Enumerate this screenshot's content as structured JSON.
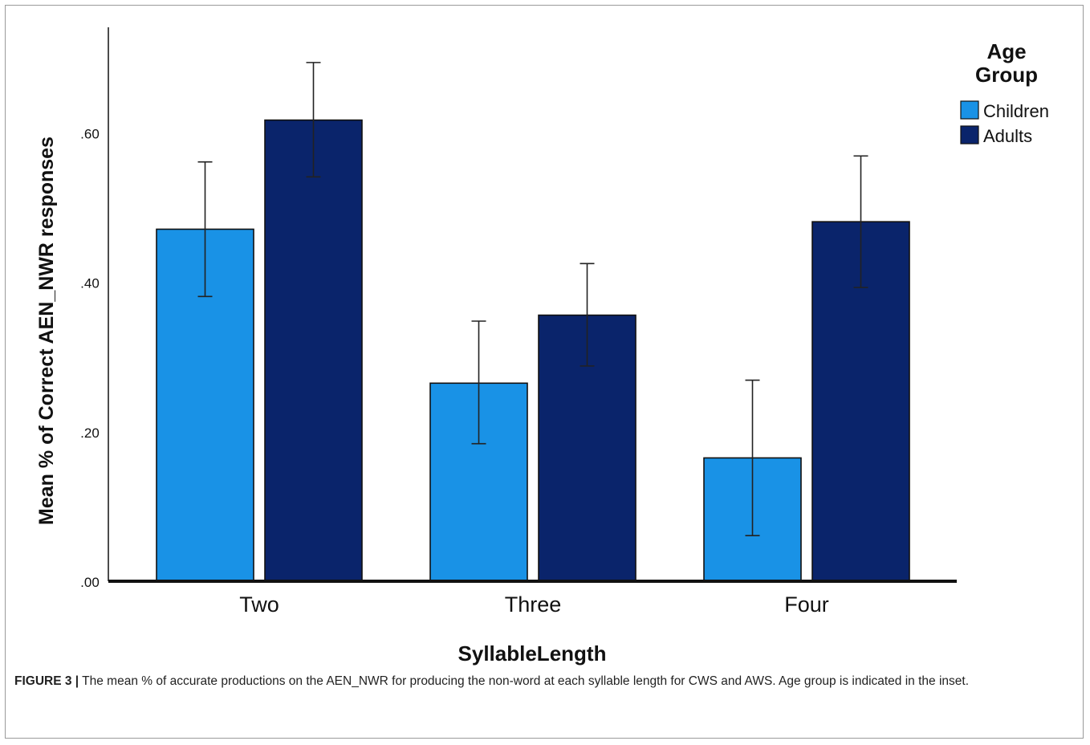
{
  "chart_data": {
    "type": "bar",
    "title": "",
    "xlabel": "SyllableLength",
    "ylabel": "Mean % of Correct AEN_NWR responses",
    "categories": [
      "Two",
      "Three",
      "Four"
    ],
    "ylim": [
      0,
      0.74
    ],
    "yticks": [
      0,
      0.2,
      0.4,
      0.6
    ],
    "ytick_labels": [
      ".00",
      ".20",
      ".40",
      ".60"
    ],
    "series": [
      {
        "name": "Children",
        "color": "#1992e6",
        "values": [
          0.471,
          0.265,
          0.165
        ],
        "error_low": [
          0.381,
          0.184,
          0.061
        ],
        "error_high": [
          0.561,
          0.348,
          0.269
        ]
      },
      {
        "name": "Adults",
        "color": "#0a246b",
        "values": [
          0.617,
          0.356,
          0.481
        ],
        "error_low": [
          0.541,
          0.288,
          0.393
        ],
        "error_high": [
          0.694,
          0.425,
          0.569
        ]
      }
    ],
    "legend": {
      "title_line1": "Age",
      "title_line2": "Group",
      "placement": "top-right"
    },
    "grid": false
  },
  "caption": {
    "label": "FIGURE 3 |",
    "text": " The mean % of accurate productions on the AEN_NWR for producing the non-word at each syllable length for CWS and AWS. Age group is indicated in the inset."
  }
}
